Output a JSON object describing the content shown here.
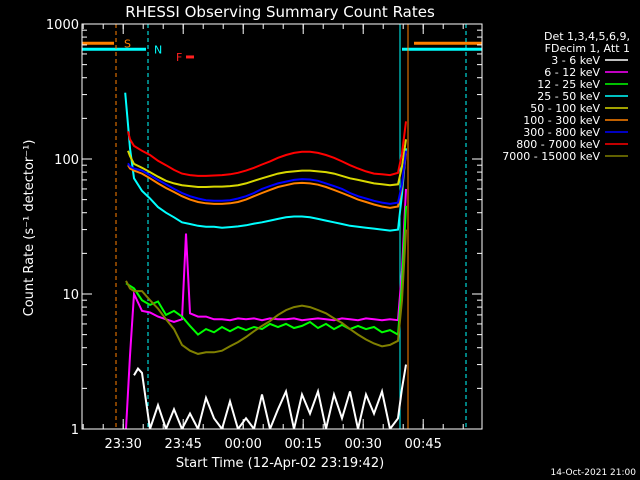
{
  "chart_data": {
    "type": "line",
    "title": "RHESSI Observing Summary Count Rates",
    "xlabel": "Start Time (12-Apr-02 23:19:42)",
    "ylabel": "Count Rate (s⁻¹ detector⁻¹)",
    "y_scale": "log",
    "ylim": [
      1,
      1000
    ],
    "y_ticks": [
      {
        "v": 1,
        "label": "1"
      },
      {
        "v": 10,
        "label": "10"
      },
      {
        "v": 100,
        "label": "100"
      },
      {
        "v": 1000,
        "label": "1000"
      }
    ],
    "x_ticks": [
      {
        "t": 10.3,
        "label": "23:30"
      },
      {
        "t": 25.3,
        "label": "23:45"
      },
      {
        "t": 40.3,
        "label": "00:00"
      },
      {
        "t": 55.3,
        "label": "00:15"
      },
      {
        "t": 70.3,
        "label": "00:30"
      },
      {
        "t": 85.3,
        "label": "00:45"
      }
    ],
    "xlim_minutes_after_start": [
      0,
      100
    ],
    "legend_header": [
      "Det 1,3,4,5,6,9,",
      "FDecim 1, Att 1"
    ],
    "legend_placement": "right, outside plot",
    "timestamp": "14-Oct-2021 21:00",
    "flags": [
      {
        "label": "S",
        "color": "#ff8000",
        "bar_t": [
          0,
          8
        ],
        "bar_y": 720,
        "label_t": 10.5
      },
      {
        "label": "N",
        "color": "#00ffff",
        "bar_t": [
          0,
          16
        ],
        "bar_y": 650,
        "label_t": 18
      },
      {
        "label": "F",
        "color": "#ff2020",
        "bar_t": [
          26,
          28
        ],
        "bar_y": 570,
        "label_t": 23.5
      }
    ],
    "vlines": [
      {
        "t": 8.5,
        "color": "#ff8000",
        "dash": true
      },
      {
        "t": 16.5,
        "color": "#00ffff",
        "dash": true
      },
      {
        "t": 79.5,
        "color": "#00ffff",
        "dash": false
      },
      {
        "t": 81.5,
        "color": "#ff8000",
        "dash": false
      },
      {
        "t": 96,
        "color": "#00ffff",
        "dash": true
      }
    ],
    "series": [
      {
        "name": "3 - 6 keV",
        "color": "#ffffff",
        "t": [
          13,
          14,
          15,
          17,
          19,
          21,
          23,
          25,
          27,
          29,
          31,
          33,
          35,
          37,
          39,
          41,
          43,
          45,
          47,
          49,
          51,
          53,
          55,
          57,
          59,
          61,
          63,
          65,
          67,
          69,
          71,
          73,
          75,
          77,
          79,
          80,
          81
        ],
        "v": [
          2.5,
          2.8,
          2.6,
          1.0,
          1.5,
          1.0,
          1.4,
          1.0,
          1.3,
          1.0,
          1.7,
          1.2,
          1.0,
          1.6,
          1.0,
          1.2,
          1.0,
          1.8,
          1.0,
          1.4,
          1.9,
          1.0,
          1.8,
          1.3,
          1.9,
          1.0,
          1.8,
          1.2,
          1.9,
          1.0,
          1.8,
          1.3,
          1.9,
          1.0,
          1.2,
          2.0,
          3.0
        ]
      },
      {
        "name": "6 - 12 keV",
        "color": "#ff00ff",
        "t": [
          11,
          12,
          13,
          15,
          17,
          19,
          21,
          23,
          25,
          26,
          27,
          29,
          31,
          33,
          35,
          37,
          39,
          41,
          43,
          45,
          47,
          49,
          51,
          53,
          55,
          57,
          59,
          61,
          63,
          65,
          67,
          69,
          71,
          73,
          75,
          77,
          79,
          80,
          81
        ],
        "v": [
          1.0,
          3.5,
          10.0,
          7.5,
          7.3,
          6.8,
          6.5,
          6.2,
          6.5,
          28,
          7.2,
          6.8,
          6.8,
          6.5,
          6.5,
          6.4,
          6.6,
          6.5,
          6.6,
          6.4,
          6.6,
          6.5,
          6.5,
          6.6,
          6.4,
          6.5,
          6.6,
          6.5,
          6.4,
          6.6,
          6.5,
          6.4,
          6.6,
          6.5,
          6.4,
          6.5,
          6.4,
          15,
          60
        ]
      },
      {
        "name": "12 - 25 keV",
        "color": "#00ff00",
        "t": [
          11,
          12,
          13,
          15,
          17,
          19,
          21,
          23,
          25,
          27,
          29,
          31,
          33,
          35,
          37,
          39,
          41,
          43,
          45,
          47,
          49,
          51,
          53,
          55,
          57,
          59,
          61,
          63,
          65,
          67,
          69,
          71,
          73,
          75,
          77,
          79,
          80,
          81
        ],
        "v": [
          12,
          11.5,
          11,
          9,
          8.3,
          8.8,
          7.0,
          7.5,
          6.8,
          5.8,
          5.0,
          5.5,
          5.2,
          5.7,
          5.3,
          5.7,
          5.4,
          5.7,
          5.5,
          6.0,
          5.7,
          6.0,
          5.6,
          5.8,
          6.2,
          5.6,
          6.0,
          5.5,
          5.9,
          5.5,
          5.8,
          5.5,
          5.7,
          5.2,
          5.4,
          5.0,
          12,
          45
        ]
      },
      {
        "name": "25 - 50 keV",
        "color": "#00ffff",
        "t": [
          10.8,
          11.5,
          12,
          13,
          15,
          17,
          19,
          21,
          23,
          25,
          27,
          29,
          31,
          33,
          35,
          37,
          39,
          41,
          43,
          45,
          47,
          49,
          51,
          53,
          55,
          57,
          59,
          61,
          63,
          65,
          67,
          69,
          71,
          73,
          75,
          77,
          79,
          80,
          81
        ],
        "v": [
          310,
          180,
          120,
          72,
          58,
          51,
          44,
          40,
          37,
          34,
          33,
          32,
          31.5,
          31.5,
          31,
          31.3,
          31.7,
          32.3,
          33.2,
          34,
          35,
          36,
          37,
          37.5,
          37.5,
          37,
          36,
          35,
          34,
          33,
          32,
          31.5,
          31,
          30.5,
          30,
          29.5,
          30,
          55,
          120
        ]
      },
      {
        "name": "50 - 100 keV",
        "color": "#d8d800",
        "t": [
          11.5,
          12,
          13,
          15,
          17,
          19,
          21,
          23,
          25,
          27,
          29,
          31,
          33,
          35,
          37,
          39,
          41,
          43,
          45,
          47,
          49,
          51,
          53,
          55,
          57,
          59,
          61,
          63,
          65,
          67,
          69,
          71,
          73,
          75,
          77,
          79,
          80,
          81
        ],
        "v": [
          115,
          105,
          92,
          86,
          80,
          74,
          69,
          66,
          64,
          63,
          62,
          62,
          62.5,
          62.5,
          63,
          64,
          66,
          69,
          72,
          75,
          78,
          80,
          81,
          82,
          82,
          81,
          80,
          78,
          75,
          72,
          70,
          68,
          66,
          65,
          64,
          65,
          88,
          140
        ]
      },
      {
        "name": "100 - 300 keV",
        "color": "#ff8000",
        "t": [
          11.5,
          12,
          13,
          15,
          17,
          19,
          21,
          23,
          25,
          27,
          29,
          31,
          33,
          35,
          37,
          39,
          41,
          43,
          45,
          47,
          49,
          51,
          53,
          55,
          57,
          59,
          61,
          63,
          65,
          67,
          69,
          71,
          73,
          75,
          77,
          79,
          80,
          81
        ],
        "v": [
          90,
          85,
          82,
          78,
          72,
          66,
          61,
          57,
          53,
          50,
          48,
          47,
          46.5,
          46.5,
          47,
          48,
          50,
          53,
          56,
          59,
          62,
          64,
          66,
          66.5,
          66,
          64.5,
          62,
          59,
          56,
          53,
          50,
          48,
          46,
          44.5,
          43.5,
          44.5,
          62,
          110
        ]
      },
      {
        "name": "300 - 800 keV",
        "color": "#0000ff",
        "t": [
          11.5,
          12,
          13,
          15,
          17,
          19,
          21,
          23,
          25,
          27,
          29,
          31,
          33,
          35,
          37,
          39,
          41,
          43,
          45,
          47,
          49,
          51,
          53,
          55,
          57,
          59,
          61,
          63,
          65,
          67,
          69,
          71,
          73,
          75,
          77,
          79,
          80,
          81
        ],
        "v": [
          93,
          88,
          85,
          82,
          76,
          70,
          65,
          60,
          56,
          53,
          51,
          49.5,
          49,
          49,
          49.5,
          51,
          53,
          56,
          60,
          63,
          66,
          68,
          70,
          71,
          70.5,
          69,
          66,
          63,
          60,
          56,
          53,
          51,
          49,
          47.5,
          46.5,
          47.5,
          65,
          115
        ]
      },
      {
        "name": "800 - 7000 keV",
        "color": "#ff0000",
        "t": [
          11.5,
          12,
          13,
          15,
          17,
          19,
          21,
          23,
          25,
          27,
          29,
          31,
          33,
          35,
          37,
          39,
          41,
          43,
          45,
          47,
          49,
          51,
          53,
          55,
          57,
          59,
          61,
          63,
          65,
          67,
          69,
          71,
          73,
          75,
          77,
          79,
          80,
          81
        ],
        "v": [
          160,
          140,
          125,
          115,
          107,
          97,
          90,
          83,
          78,
          76,
          75,
          75,
          75.5,
          76,
          77,
          79,
          82,
          86,
          91,
          96,
          102,
          107,
          111,
          113,
          113,
          111,
          107,
          102,
          96,
          90,
          85,
          81,
          78,
          77,
          76,
          79,
          110,
          190
        ]
      },
      {
        "name": "7000 - 15000 keV",
        "color": "#808000",
        "t": [
          11,
          12,
          13,
          15,
          17,
          19,
          21,
          23,
          25,
          27,
          29,
          31,
          33,
          35,
          37,
          39,
          41,
          43,
          45,
          47,
          49,
          51,
          53,
          55,
          57,
          59,
          61,
          63,
          65,
          67,
          69,
          71,
          73,
          75,
          77,
          79,
          80,
          81
        ],
        "v": [
          12.5,
          11,
          10.5,
          10.5,
          9,
          7.8,
          6.5,
          5.5,
          4.2,
          3.8,
          3.6,
          3.7,
          3.7,
          3.8,
          4.1,
          4.4,
          4.8,
          5.3,
          5.8,
          6.3,
          7.0,
          7.6,
          8.0,
          8.2,
          8.0,
          7.6,
          7.2,
          6.6,
          6.1,
          5.5,
          5.0,
          4.6,
          4.3,
          4.1,
          4.2,
          4.5,
          9,
          30
        ]
      }
    ]
  }
}
